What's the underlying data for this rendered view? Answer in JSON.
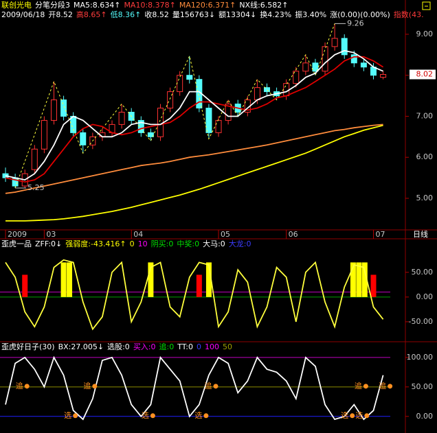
{
  "chart_data": [
    {
      "type": "candlestick",
      "header": [
        [
          {
            "text": "联创光电",
            "color": "#ffff00"
          },
          {
            "text": "分笔分段3",
            "color": "#ffffff"
          },
          {
            "text": "MA5:8.634↑",
            "color": "#ffffff"
          },
          {
            "text": "MA10:8.378↑",
            "color": "#ff3c3c"
          },
          {
            "text": "MA120:6.371↑",
            "color": "#ff8c3c"
          },
          {
            "text": "NX线:6.582↑",
            "color": "#ffffff"
          }
        ],
        [
          {
            "text": "2009/06/18",
            "color": "#ffffff"
          },
          {
            "text": "开8.52",
            "color": "#ffffff"
          },
          {
            "text": "高8.65↑",
            "color": "#ff3c3c"
          },
          {
            "text": "低8.36↑",
            "color": "#54fcfc"
          },
          {
            "text": "收8.52",
            "color": "#ffffff"
          },
          {
            "text": "量156763↓",
            "color": "#ffffff"
          },
          {
            "text": "额13304↓",
            "color": "#ffffff"
          },
          {
            "text": "换4.23%",
            "color": "#ffffff"
          },
          {
            "text": "振3.40%",
            "color": "#ffffff"
          },
          {
            "text": "涨(0.00)(0.00%)",
            "color": "#ffffff"
          },
          {
            "text": "指数(43.",
            "color": "#ff3c3c"
          }
        ]
      ],
      "x": [
        0,
        1,
        2,
        3,
        4,
        5,
        6,
        7,
        8,
        9,
        10,
        11,
        12,
        13,
        14,
        15,
        16,
        17,
        18,
        19,
        20,
        21,
        22,
        23,
        24,
        25,
        26,
        27,
        28,
        29,
        30,
        31,
        32,
        33,
        34,
        35,
        36,
        37,
        38,
        39
      ],
      "xlim": [
        -0.57,
        41.3
      ],
      "ylim": [
        4.23,
        9.3
      ],
      "yticks": [
        {
          "value": 9,
          "label": "9.00"
        },
        {
          "value": 8,
          "label": "8.00"
        },
        {
          "value": 7,
          "label": "7.00"
        },
        {
          "value": 6,
          "label": "6.00"
        },
        {
          "value": 5,
          "label": "5.00"
        }
      ],
      "xticks": [
        {
          "value": 0,
          "label": "2009"
        },
        {
          "value": 4,
          "label": "03"
        },
        {
          "value": 13,
          "label": "04"
        },
        {
          "value": 22,
          "label": "05"
        },
        {
          "value": 29,
          "label": "06"
        },
        {
          "value": 38,
          "label": "07"
        }
      ],
      "period": "日线",
      "candles": {
        "up_color": "#ff3232",
        "down_color": "#54fcfc",
        "open": [
          5.6,
          5.5,
          5.3,
          5.7,
          6.2,
          6.9,
          7.4,
          7.0,
          6.6,
          6.3,
          6.5,
          6.6,
          6.8,
          7.1,
          6.9,
          6.6,
          6.5,
          7.2,
          7.6,
          8.0,
          7.9,
          7.2,
          6.6,
          6.9,
          7.3,
          7.1,
          7.4,
          7.7,
          7.6,
          7.5,
          7.8,
          8.1,
          8.3,
          8.1,
          8.7,
          8.9,
          8.5,
          8.3,
          8.2,
          7.95
        ],
        "high": [
          5.75,
          5.6,
          5.7,
          6.3,
          7.0,
          7.85,
          7.5,
          7.1,
          6.7,
          6.6,
          6.7,
          6.9,
          7.3,
          7.2,
          7.0,
          6.7,
          7.3,
          7.7,
          8.1,
          8.47,
          8.0,
          7.3,
          7.0,
          7.4,
          7.4,
          7.5,
          7.9,
          7.8,
          7.7,
          7.9,
          8.2,
          8.5,
          8.4,
          8.8,
          9.26,
          9.0,
          8.6,
          8.4,
          8.3,
          8.1
        ],
        "low": [
          5.4,
          5.25,
          5.25,
          5.6,
          6.1,
          6.8,
          6.9,
          6.5,
          6.1,
          6.2,
          6.4,
          6.5,
          6.7,
          6.8,
          6.5,
          6.4,
          6.4,
          7.1,
          7.5,
          7.8,
          7.1,
          6.45,
          6.5,
          6.8,
          7.0,
          7.0,
          7.3,
          7.5,
          7.4,
          7.4,
          7.7,
          8.0,
          8.0,
          8.0,
          8.6,
          8.4,
          8.2,
          8.1,
          7.9,
          7.9
        ],
        "close": [
          5.5,
          5.3,
          5.6,
          6.2,
          6.9,
          7.4,
          7.0,
          6.6,
          6.3,
          6.5,
          6.6,
          6.8,
          7.1,
          6.9,
          6.6,
          6.5,
          7.2,
          7.6,
          8.0,
          7.9,
          7.2,
          6.6,
          6.9,
          7.3,
          7.1,
          7.4,
          7.7,
          7.6,
          7.5,
          7.8,
          8.1,
          8.3,
          8.1,
          8.7,
          8.9,
          8.5,
          8.3,
          8.2,
          8.0,
          8.02
        ]
      },
      "series": [
        {
          "color": "#ffff3c",
          "dash": true,
          "x": [
            1,
            5,
            8,
            12,
            15,
            19,
            21,
            23,
            24,
            26,
            28,
            31,
            32,
            34
          ],
          "values": [
            5.25,
            7.85,
            6.1,
            7.3,
            6.4,
            8.47,
            6.45,
            7.4,
            7.0,
            7.9,
            7.4,
            8.5,
            8.0,
            9.26
          ]
        },
        {
          "color": "#ffff00",
          "values": [
            4.45,
            4.45,
            4.45,
            4.46,
            4.47,
            4.48,
            4.5,
            4.53,
            4.56,
            4.6,
            4.64,
            4.68,
            4.73,
            4.78,
            4.84,
            4.9,
            4.96,
            5.02,
            5.08,
            5.15,
            5.22,
            5.3,
            5.38,
            5.46,
            5.54,
            5.62,
            5.7,
            5.78,
            5.86,
            5.94,
            6.02,
            6.1,
            6.2,
            6.3,
            6.4,
            6.5,
            6.58,
            6.66,
            6.72,
            6.78
          ]
        },
        {
          "color": "#ff8c3c",
          "values": [
            5.12,
            5.15,
            5.2,
            5.25,
            5.3,
            5.35,
            5.4,
            5.45,
            5.5,
            5.55,
            5.6,
            5.65,
            5.7,
            5.75,
            5.8,
            5.83,
            5.86,
            5.9,
            5.95,
            6.0,
            6.03,
            6.06,
            6.1,
            6.14,
            6.18,
            6.22,
            6.26,
            6.3,
            6.35,
            6.4,
            6.45,
            6.5,
            6.55,
            6.6,
            6.65,
            6.68,
            6.72,
            6.75,
            6.78,
            6.8
          ]
        },
        {
          "color": "#e00000",
          "values": [
            5.5,
            5.45,
            5.4,
            5.45,
            5.6,
            5.9,
            6.2,
            6.5,
            6.7,
            6.8,
            6.75,
            6.6,
            6.55,
            6.6,
            6.7,
            6.75,
            6.8,
            6.85,
            7.0,
            7.2,
            7.35,
            7.35,
            7.3,
            7.25,
            7.2,
            7.15,
            7.2,
            7.3,
            7.45,
            7.5,
            7.6,
            7.7,
            7.85,
            8.0,
            8.15,
            8.35,
            8.45,
            8.45,
            8.35,
            8.2
          ]
        },
        {
          "color": "#ffffff",
          "values": [
            5.55,
            5.5,
            5.45,
            5.6,
            5.9,
            6.3,
            6.8,
            7.0,
            6.9,
            6.7,
            6.5,
            6.5,
            6.6,
            6.8,
            6.85,
            6.8,
            6.8,
            6.95,
            7.2,
            7.6,
            7.6,
            7.4,
            7.2,
            7.0,
            7.0,
            7.2,
            7.4,
            7.5,
            7.55,
            7.6,
            7.75,
            7.95,
            8.05,
            8.3,
            8.5,
            8.6,
            8.55,
            8.4,
            8.2,
            8.1
          ]
        }
      ],
      "annotations": [
        {
          "label": "9.26",
          "x": 34,
          "value": 9.26
        },
        {
          "label": "5.25",
          "x": 1,
          "value": 5.25
        }
      ],
      "last": {
        "label": "8.02",
        "value": 8.02
      }
    },
    {
      "type": "oscillator",
      "header": [
        [
          {
            "text": "歪虎一品",
            "color": "#ffffff"
          },
          {
            "text": "ZFF:0↓",
            "color": "#ffffff"
          },
          {
            "text": "强弱度:-43.416↑",
            "color": "#ffff00"
          },
          {
            "text": "0",
            "color": "#ffff00"
          },
          {
            "text": "10",
            "color": "#ff00ff"
          },
          {
            "text": "阴买:0",
            "color": "#00e000"
          },
          {
            "text": "中奖:0",
            "color": "#00e000"
          },
          {
            "text": "大马:0",
            "color": "#ffffff"
          },
          {
            "text": "大龙:0",
            "color": "#3c3cff"
          }
        ]
      ],
      "x": [
        0,
        1,
        2,
        3,
        4,
        5,
        6,
        7,
        8,
        9,
        10,
        11,
        12,
        13,
        14,
        15,
        16,
        17,
        18,
        19,
        20,
        21,
        22,
        23,
        24,
        25,
        26,
        27,
        28,
        29,
        30,
        31,
        32,
        33,
        34,
        35,
        36,
        37,
        38,
        39
      ],
      "xlim": [
        -0.57,
        41.3
      ],
      "ylim": [
        -89,
        90
      ],
      "yticks": [
        {
          "value": 50,
          "label": "50.00"
        },
        {
          "value": 0,
          "label": "0.00"
        },
        {
          "value": -50,
          "label": "-50.00"
        }
      ],
      "levels": [
        {
          "value": 10,
          "color": "#c000c0"
        },
        {
          "value": 0,
          "color": "#00a000"
        }
      ],
      "bars": [
        {
          "color": "#ff0000",
          "x": [
            2,
            20,
            38
          ],
          "values": [
            45,
            45,
            45
          ]
        },
        {
          "color": "#ffff00",
          "x": [
            6,
            6.6,
            15,
            21,
            35.9,
            36.5,
            37.1
          ],
          "values": [
            70,
            70,
            70,
            70,
            70,
            70,
            70
          ]
        }
      ],
      "series": [
        {
          "color": "#ffff3c",
          "values": [
            70,
            40,
            -30,
            -60,
            -20,
            60,
            75,
            70,
            -10,
            -65,
            -40,
            50,
            70,
            -50,
            -10,
            60,
            70,
            -20,
            -40,
            40,
            70,
            65,
            -60,
            -30,
            55,
            30,
            -60,
            -20,
            60,
            40,
            -50,
            50,
            70,
            -10,
            -60,
            20,
            65,
            60,
            -20,
            -45
          ]
        }
      ]
    },
    {
      "type": "oscillator",
      "header": [
        [
          {
            "text": "歪虎好日子(30)",
            "color": "#ffffff"
          },
          {
            "text": "BX:27.005↓",
            "color": "#ffffff"
          },
          {
            "text": "选股:0",
            "color": "#ffffff"
          },
          {
            "text": "买入:0",
            "color": "#ff00ff"
          },
          {
            "text": "追:0",
            "color": "#00e000"
          },
          {
            "text": "TT:0",
            "color": "#ffffff"
          },
          {
            "text": "0",
            "color": "#3c3cff"
          },
          {
            "text": "100",
            "color": "#ff00ff"
          },
          {
            "text": "50",
            "color": "#a0a000"
          }
        ]
      ],
      "x": [
        0,
        1,
        2,
        3,
        4,
        5,
        6,
        7,
        8,
        9,
        10,
        11,
        12,
        13,
        14,
        15,
        16,
        17,
        18,
        19,
        20,
        21,
        22,
        23,
        24,
        25,
        26,
        27,
        28,
        29,
        30,
        31,
        32,
        33,
        34,
        35,
        36,
        37,
        38,
        39
      ],
      "xlim": [
        -0.57,
        41.3
      ],
      "ylim": [
        -27,
        108
      ],
      "yticks": [
        {
          "value": 100,
          "label": "100.00"
        },
        {
          "value": 50,
          "label": "50.00"
        },
        {
          "value": 0,
          "label": "0.00"
        }
      ],
      "levels": [
        {
          "value": 100,
          "color": "#c000c0"
        },
        {
          "value": 50,
          "color": "#8c8c00"
        },
        {
          "value": 0,
          "color": "#2020ff"
        }
      ],
      "series": [
        {
          "color": "#ffffff",
          "values": [
            20,
            90,
            100,
            80,
            50,
            100,
            70,
            10,
            -5,
            30,
            95,
            100,
            70,
            20,
            0,
            20,
            100,
            80,
            60,
            0,
            20,
            70,
            100,
            90,
            40,
            60,
            100,
            80,
            75,
            60,
            30,
            100,
            85,
            20,
            -5,
            0,
            20,
            -5,
            10,
            70
          ]
        }
      ],
      "markers": [
        {
          "label": "追",
          "x": 2,
          "y": 50
        },
        {
          "label": "追",
          "x": 9,
          "y": 50
        },
        {
          "label": "追",
          "x": 21.5,
          "y": 50
        },
        {
          "label": "追",
          "x": 37,
          "y": 50
        },
        {
          "label": "追",
          "x": 39.5,
          "y": 50
        },
        {
          "label": "选",
          "x": 7,
          "y": 0
        },
        {
          "label": "选",
          "x": 15,
          "y": 0
        },
        {
          "label": "选",
          "x": 20.5,
          "y": 0
        },
        {
          "label": "选",
          "x": 35.6,
          "y": 0
        },
        {
          "label": "选",
          "x": 37.1,
          "y": 0
        }
      ]
    }
  ]
}
